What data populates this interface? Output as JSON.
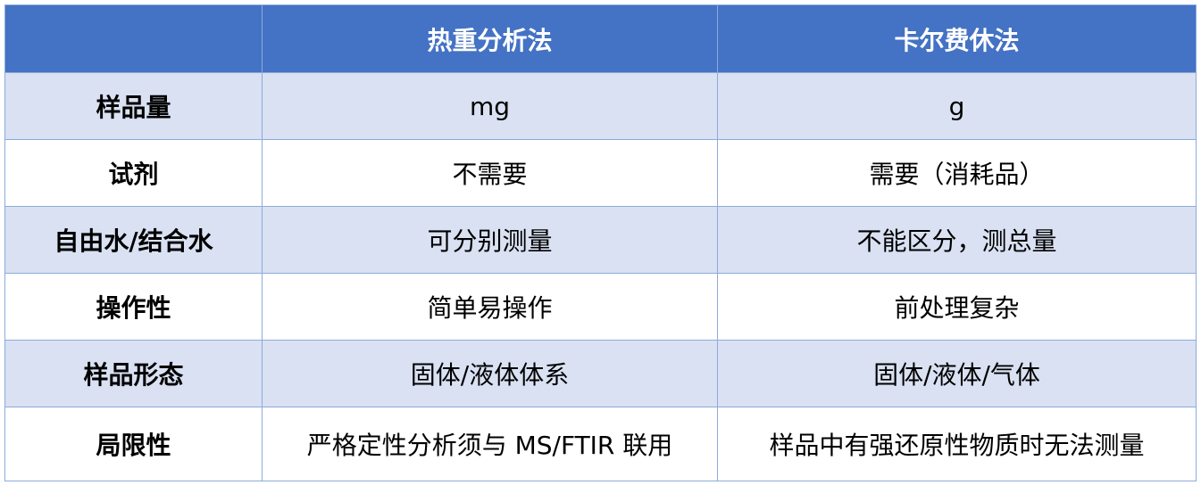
{
  "table": {
    "header": [
      "热重分析法",
      "卡尔费休法"
    ],
    "rows": [
      [
        "样品量",
        "mg",
        "g"
      ],
      [
        "试剂",
        "不需要",
        "需要（消耗品）"
      ],
      [
        "自由水/结合水",
        "可分别测量",
        "不能区分，测总量"
      ],
      [
        "操作性",
        "简单易操作",
        "前处理复杂"
      ],
      [
        "样品形态",
        "固体/液体体系",
        "固体/液体/气体"
      ],
      [
        "局限性",
        "严格定性分析须与 MS/FTIR 联用",
        "样品中有强还原性物质时无法测量"
      ]
    ]
  }
}
